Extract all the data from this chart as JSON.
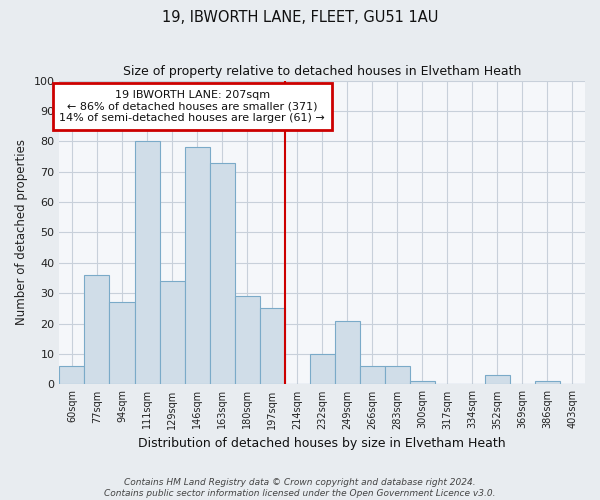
{
  "title": "19, IBWORTH LANE, FLEET, GU51 1AU",
  "subtitle": "Size of property relative to detached houses in Elvetham Heath",
  "xlabel": "Distribution of detached houses by size in Elvetham Heath",
  "ylabel": "Number of detached properties",
  "bar_labels": [
    "60sqm",
    "77sqm",
    "94sqm",
    "111sqm",
    "129sqm",
    "146sqm",
    "163sqm",
    "180sqm",
    "197sqm",
    "214sqm",
    "232sqm",
    "249sqm",
    "266sqm",
    "283sqm",
    "300sqm",
    "317sqm",
    "334sqm",
    "352sqm",
    "369sqm",
    "386sqm",
    "403sqm"
  ],
  "bar_values": [
    6,
    36,
    27,
    80,
    34,
    78,
    73,
    29,
    25,
    0,
    10,
    21,
    6,
    6,
    1,
    0,
    0,
    3,
    0,
    1,
    0
  ],
  "bar_color": "#d0dde8",
  "bar_edge_color": "#7aaac8",
  "vline_x": 8.5,
  "vline_color": "#cc0000",
  "annotation_title": "19 IBWORTH LANE: 207sqm",
  "annotation_line1": "← 86% of detached houses are smaller (371)",
  "annotation_line2": "14% of semi-detached houses are larger (61) →",
  "annotation_box_color": "#ffffff",
  "annotation_box_edge": "#cc0000",
  "ylim": [
    0,
    100
  ],
  "yticks": [
    0,
    10,
    20,
    30,
    40,
    50,
    60,
    70,
    80,
    90,
    100
  ],
  "footer1": "Contains HM Land Registry data © Crown copyright and database right 2024.",
  "footer2": "Contains public sector information licensed under the Open Government Licence v3.0.",
  "background_color": "#e8ecf0",
  "plot_bg_color": "#f5f7fa",
  "grid_color": "#c8d0da"
}
